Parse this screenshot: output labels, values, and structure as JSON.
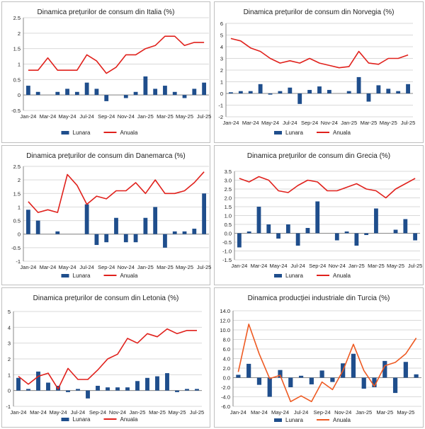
{
  "legend": {
    "bar_label": "Lunara",
    "line_label": "Anuala"
  },
  "colors": {
    "bar": "#1f4e8c",
    "line_red": "#e0211c",
    "line_orange": "#ee5a22",
    "grid": "#d9d9d9",
    "axis": "#888888",
    "text": "#222222"
  },
  "chart_data": [
    {
      "id": "italia",
      "type": "bar+line",
      "title": "Dinamica prețurilor de consum din Italia (%)",
      "categories": [
        "Jan-24",
        "Feb-24",
        "Mar-24",
        "Apr-24",
        "May-24",
        "Jun-24",
        "Jul-24",
        "Aug-24",
        "Sep-24",
        "Oct-24",
        "Nov-24",
        "Dec-24",
        "Jan-25",
        "Feb-25",
        "Mar-25",
        "Apr-25",
        "May-25",
        "Jun-25",
        "Jul-25"
      ],
      "x_tick_labels": [
        "Jan-24",
        "",
        "Mar-24",
        "",
        "May-24",
        "",
        "Jul-24",
        "",
        "Sep-24",
        "",
        "Nov-24",
        "",
        "Jan-25",
        "",
        "Mar-25",
        "",
        "May-25",
        "",
        "Jul-25"
      ],
      "series": [
        {
          "name": "Lunara",
          "kind": "bar",
          "values": [
            0.3,
            0.1,
            0.0,
            0.1,
            0.2,
            0.1,
            0.4,
            0.2,
            -0.2,
            0.0,
            -0.1,
            0.1,
            0.6,
            0.2,
            0.3,
            0.1,
            -0.1,
            0.2,
            0.4
          ]
        },
        {
          "name": "Anuala",
          "kind": "line",
          "values": [
            0.8,
            0.8,
            1.2,
            0.8,
            0.8,
            0.8,
            1.3,
            1.1,
            0.7,
            0.9,
            1.3,
            1.3,
            1.5,
            1.6,
            1.9,
            1.9,
            1.6,
            1.7,
            1.7
          ]
        }
      ],
      "ylim": [
        -0.5,
        2.5
      ],
      "yticks": [
        -0.5,
        0,
        0.5,
        1,
        1.5,
        2,
        2.5
      ],
      "ytick_labels": [
        "-0.5",
        "0",
        "0.5",
        "1",
        "1.5",
        "2",
        "2.5"
      ]
    },
    {
      "id": "norvegia",
      "type": "bar+line",
      "title": "Dinamica prețurilor de consum din Norvegia (%)",
      "categories": [
        "Jan-24",
        "Feb-24",
        "Mar-24",
        "Apr-24",
        "May-24",
        "Jun-24",
        "Jul-24",
        "Aug-24",
        "Sep-24",
        "Oct-24",
        "Nov-24",
        "Dec-24",
        "Jan-25",
        "Feb-25",
        "Mar-25",
        "Apr-25",
        "May-25",
        "Jun-25",
        "Jul-25"
      ],
      "x_tick_labels": [
        "Jan-24",
        "",
        "Mar-24",
        "",
        "May-24",
        "",
        "Jul-24",
        "",
        "Sep-24",
        "",
        "Nov-24",
        "",
        "Jan-25",
        "",
        "Mar-25",
        "",
        "May-25",
        "",
        "Jul-25"
      ],
      "series": [
        {
          "name": "Lunara",
          "kind": "bar",
          "values": [
            0.1,
            0.2,
            0.2,
            0.8,
            -0.1,
            0.2,
            0.5,
            -0.9,
            0.3,
            0.6,
            0.3,
            0.0,
            0.2,
            1.4,
            -0.7,
            0.7,
            0.4,
            0.2,
            0.8
          ]
        },
        {
          "name": "Anuala",
          "kind": "line",
          "values": [
            4.7,
            4.5,
            3.9,
            3.6,
            3.0,
            2.6,
            2.8,
            2.6,
            3.0,
            2.6,
            2.4,
            2.2,
            2.3,
            3.6,
            2.6,
            2.5,
            3.0,
            3.0,
            3.3
          ]
        }
      ],
      "ylim": [
        -2,
        6
      ],
      "yticks": [
        -2,
        -1,
        0,
        1,
        2,
        3,
        4,
        5,
        6
      ],
      "ytick_labels": [
        "-2",
        "-1",
        "0",
        "1",
        "2",
        "3",
        "4",
        "5",
        "6"
      ]
    },
    {
      "id": "danemarca",
      "type": "bar+line",
      "title": "Dinamica prețurilor de consum din Danemarca (%)",
      "categories": [
        "Jan-24",
        "Feb-24",
        "Mar-24",
        "Apr-24",
        "May-24",
        "Jun-24",
        "Jul-24",
        "Aug-24",
        "Sep-24",
        "Oct-24",
        "Nov-24",
        "Dec-24",
        "Jan-25",
        "Feb-25",
        "Mar-25",
        "Apr-25",
        "May-25",
        "Jun-25",
        "Jul-25"
      ],
      "x_tick_labels": [
        "Jan-24",
        "",
        "Mar-24",
        "",
        "May-24",
        "",
        "Jul-24",
        "",
        "Sep-24",
        "",
        "Nov-24",
        "",
        "Jan-25",
        "",
        "Mar-25",
        "",
        "May-25",
        "",
        "Jul-25"
      ],
      "series": [
        {
          "name": "Lunara",
          "kind": "bar",
          "values": [
            0.9,
            0.5,
            0.0,
            0.1,
            0.0,
            0.0,
            1.1,
            -0.4,
            -0.3,
            0.6,
            -0.3,
            -0.3,
            0.6,
            1.0,
            -0.5,
            0.1,
            0.1,
            0.2,
            1.5
          ]
        },
        {
          "name": "Anuala",
          "kind": "line",
          "values": [
            1.2,
            0.8,
            0.9,
            0.8,
            2.2,
            1.8,
            1.1,
            1.4,
            1.3,
            1.6,
            1.6,
            1.9,
            1.5,
            2.0,
            1.5,
            1.5,
            1.6,
            1.9,
            2.3
          ]
        }
      ],
      "ylim": [
        -1,
        2.5
      ],
      "yticks": [
        -1,
        -0.5,
        0,
        0.5,
        1,
        1.5,
        2,
        2.5
      ],
      "ytick_labels": [
        "-1",
        "-0.5",
        "0",
        "0.5",
        "1",
        "1.5",
        "2",
        "2.5"
      ]
    },
    {
      "id": "grecia",
      "type": "bar+line",
      "title": "Dinamica prețurilor de consum din Grecia (%)",
      "categories": [
        "Jan-24",
        "Feb-24",
        "Mar-24",
        "Apr-24",
        "May-24",
        "Jun-24",
        "Jul-24",
        "Aug-24",
        "Sep-24",
        "Oct-24",
        "Nov-24",
        "Dec-24",
        "Jan-25",
        "Feb-25",
        "Mar-25",
        "Apr-25",
        "May-25",
        "Jun-25",
        "Jul-25"
      ],
      "x_tick_labels": [
        "Jan-24",
        "",
        "Mar-24",
        "",
        "May-24",
        "",
        "Jul-24",
        "",
        "Sep-24",
        "",
        "Nov-24",
        "",
        "Jan-25",
        "",
        "Mar-25",
        "",
        "May-25",
        "",
        "Jul-25"
      ],
      "series": [
        {
          "name": "Lunara",
          "kind": "bar",
          "values": [
            -0.8,
            0.1,
            1.5,
            0.5,
            -0.3,
            0.5,
            -0.7,
            0.3,
            1.8,
            0.0,
            -0.4,
            0.1,
            -0.7,
            -0.1,
            1.4,
            0.0,
            0.2,
            0.8,
            -0.4
          ]
        },
        {
          "name": "Anuala",
          "kind": "line",
          "values": [
            3.1,
            2.9,
            3.2,
            3.0,
            2.4,
            2.3,
            2.7,
            3.0,
            2.9,
            2.4,
            2.4,
            2.6,
            2.8,
            2.5,
            2.4,
            2.0,
            2.5,
            2.8,
            3.1
          ]
        }
      ],
      "ylim": [
        -1.5,
        3.5
      ],
      "yticks": [
        -1.5,
        -1,
        -0.5,
        0,
        0.5,
        1,
        1.5,
        2,
        2.5,
        3,
        3.5
      ],
      "ytick_labels": [
        "-1.5",
        "-1.0",
        "-0.5",
        "0.0",
        "0.5",
        "1.0",
        "1.5",
        "2.0",
        "2.5",
        "3.0",
        "3.5"
      ]
    },
    {
      "id": "letonia",
      "type": "bar+line",
      "title": "Dinamica prețurilor de consum din Letonia (%)",
      "categories": [
        "Jan-24",
        "Feb-24",
        "Mar-24",
        "Apr-24",
        "May-24",
        "Jun-24",
        "Jul-24",
        "Aug-24",
        "Sep-24",
        "Oct-24",
        "Nov-24",
        "Dec-24",
        "Jan-25",
        "Feb-25",
        "Mar-25",
        "Apr-25",
        "May-25",
        "Jun-25",
        "Jul-25"
      ],
      "x_tick_labels": [
        "Jan-24",
        "",
        "Mar-24",
        "",
        "May-24",
        "",
        "Jul-24",
        "",
        "Sep-24",
        "",
        "Nov-24",
        "",
        "Jan-25",
        "",
        "Mar-25",
        "",
        "May-25",
        "",
        "Jul-25"
      ],
      "series": [
        {
          "name": "Lunara",
          "kind": "bar",
          "values": [
            0.8,
            0.1,
            1.2,
            0.5,
            0.3,
            -0.1,
            0.1,
            -0.5,
            0.3,
            0.2,
            0.2,
            0.2,
            0.6,
            0.8,
            0.9,
            1.1,
            -0.1,
            0.1,
            0.1
          ]
        },
        {
          "name": "Anuala",
          "kind": "line",
          "values": [
            0.9,
            0.4,
            0.9,
            1.1,
            0.1,
            1.4,
            0.7,
            0.7,
            1.3,
            2.0,
            2.3,
            3.3,
            3.0,
            3.6,
            3.4,
            3.9,
            3.6,
            3.8,
            3.8
          ]
        }
      ],
      "ylim": [
        -1,
        5
      ],
      "yticks": [
        -1,
        0,
        1,
        2,
        3,
        4,
        5
      ],
      "ytick_labels": [
        "-1",
        "0",
        "1",
        "2",
        "3",
        "4",
        "5"
      ]
    },
    {
      "id": "turcia",
      "type": "bar+line",
      "title": "Dinamica producției industriale din Turcia (%)",
      "categories": [
        "Jan-24",
        "Feb-24",
        "Mar-24",
        "Apr-24",
        "May-24",
        "Jun-24",
        "Jul-24",
        "Aug-24",
        "Sep-24",
        "Oct-24",
        "Nov-24",
        "Dec-24",
        "Jan-25",
        "Feb-25",
        "Mar-25",
        "Apr-25",
        "May-25",
        "Jun-25"
      ],
      "x_tick_labels": [
        "Jan-24",
        "",
        "Mar-24",
        "",
        "May-24",
        "",
        "Jul-24",
        "",
        "Sep-24",
        "",
        "Nov-24",
        "",
        "Jan-25",
        "",
        "Mar-25",
        "",
        "May-25",
        ""
      ],
      "series": [
        {
          "name": "Lunara",
          "kind": "bar",
          "values": [
            0.6,
            2.9,
            -1.5,
            -4.0,
            1.6,
            -2.0,
            0.4,
            -1.4,
            1.5,
            -0.9,
            3.0,
            5.0,
            -2.3,
            -2.0,
            3.5,
            -3.2,
            3.3,
            0.7
          ]
        },
        {
          "name": "Anuala",
          "kind": "line",
          "values": [
            1.2,
            11.2,
            5.0,
            -0.2,
            0.5,
            -5.0,
            -3.8,
            -5.0,
            -0.9,
            -2.5,
            1.5,
            7.0,
            1.5,
            -1.8,
            2.5,
            3.2,
            5.0,
            8.3
          ]
        }
      ],
      "ylim": [
        -6,
        14
      ],
      "yticks": [
        -6,
        -4,
        -2,
        0,
        2,
        4,
        6,
        8,
        10,
        12,
        14
      ],
      "ytick_labels": [
        "-6.0",
        "-4.0",
        "-2.0",
        "0.0",
        "2.0",
        "4.0",
        "6.0",
        "8.0",
        "10.0",
        "12.0",
        "14.0"
      ]
    }
  ]
}
